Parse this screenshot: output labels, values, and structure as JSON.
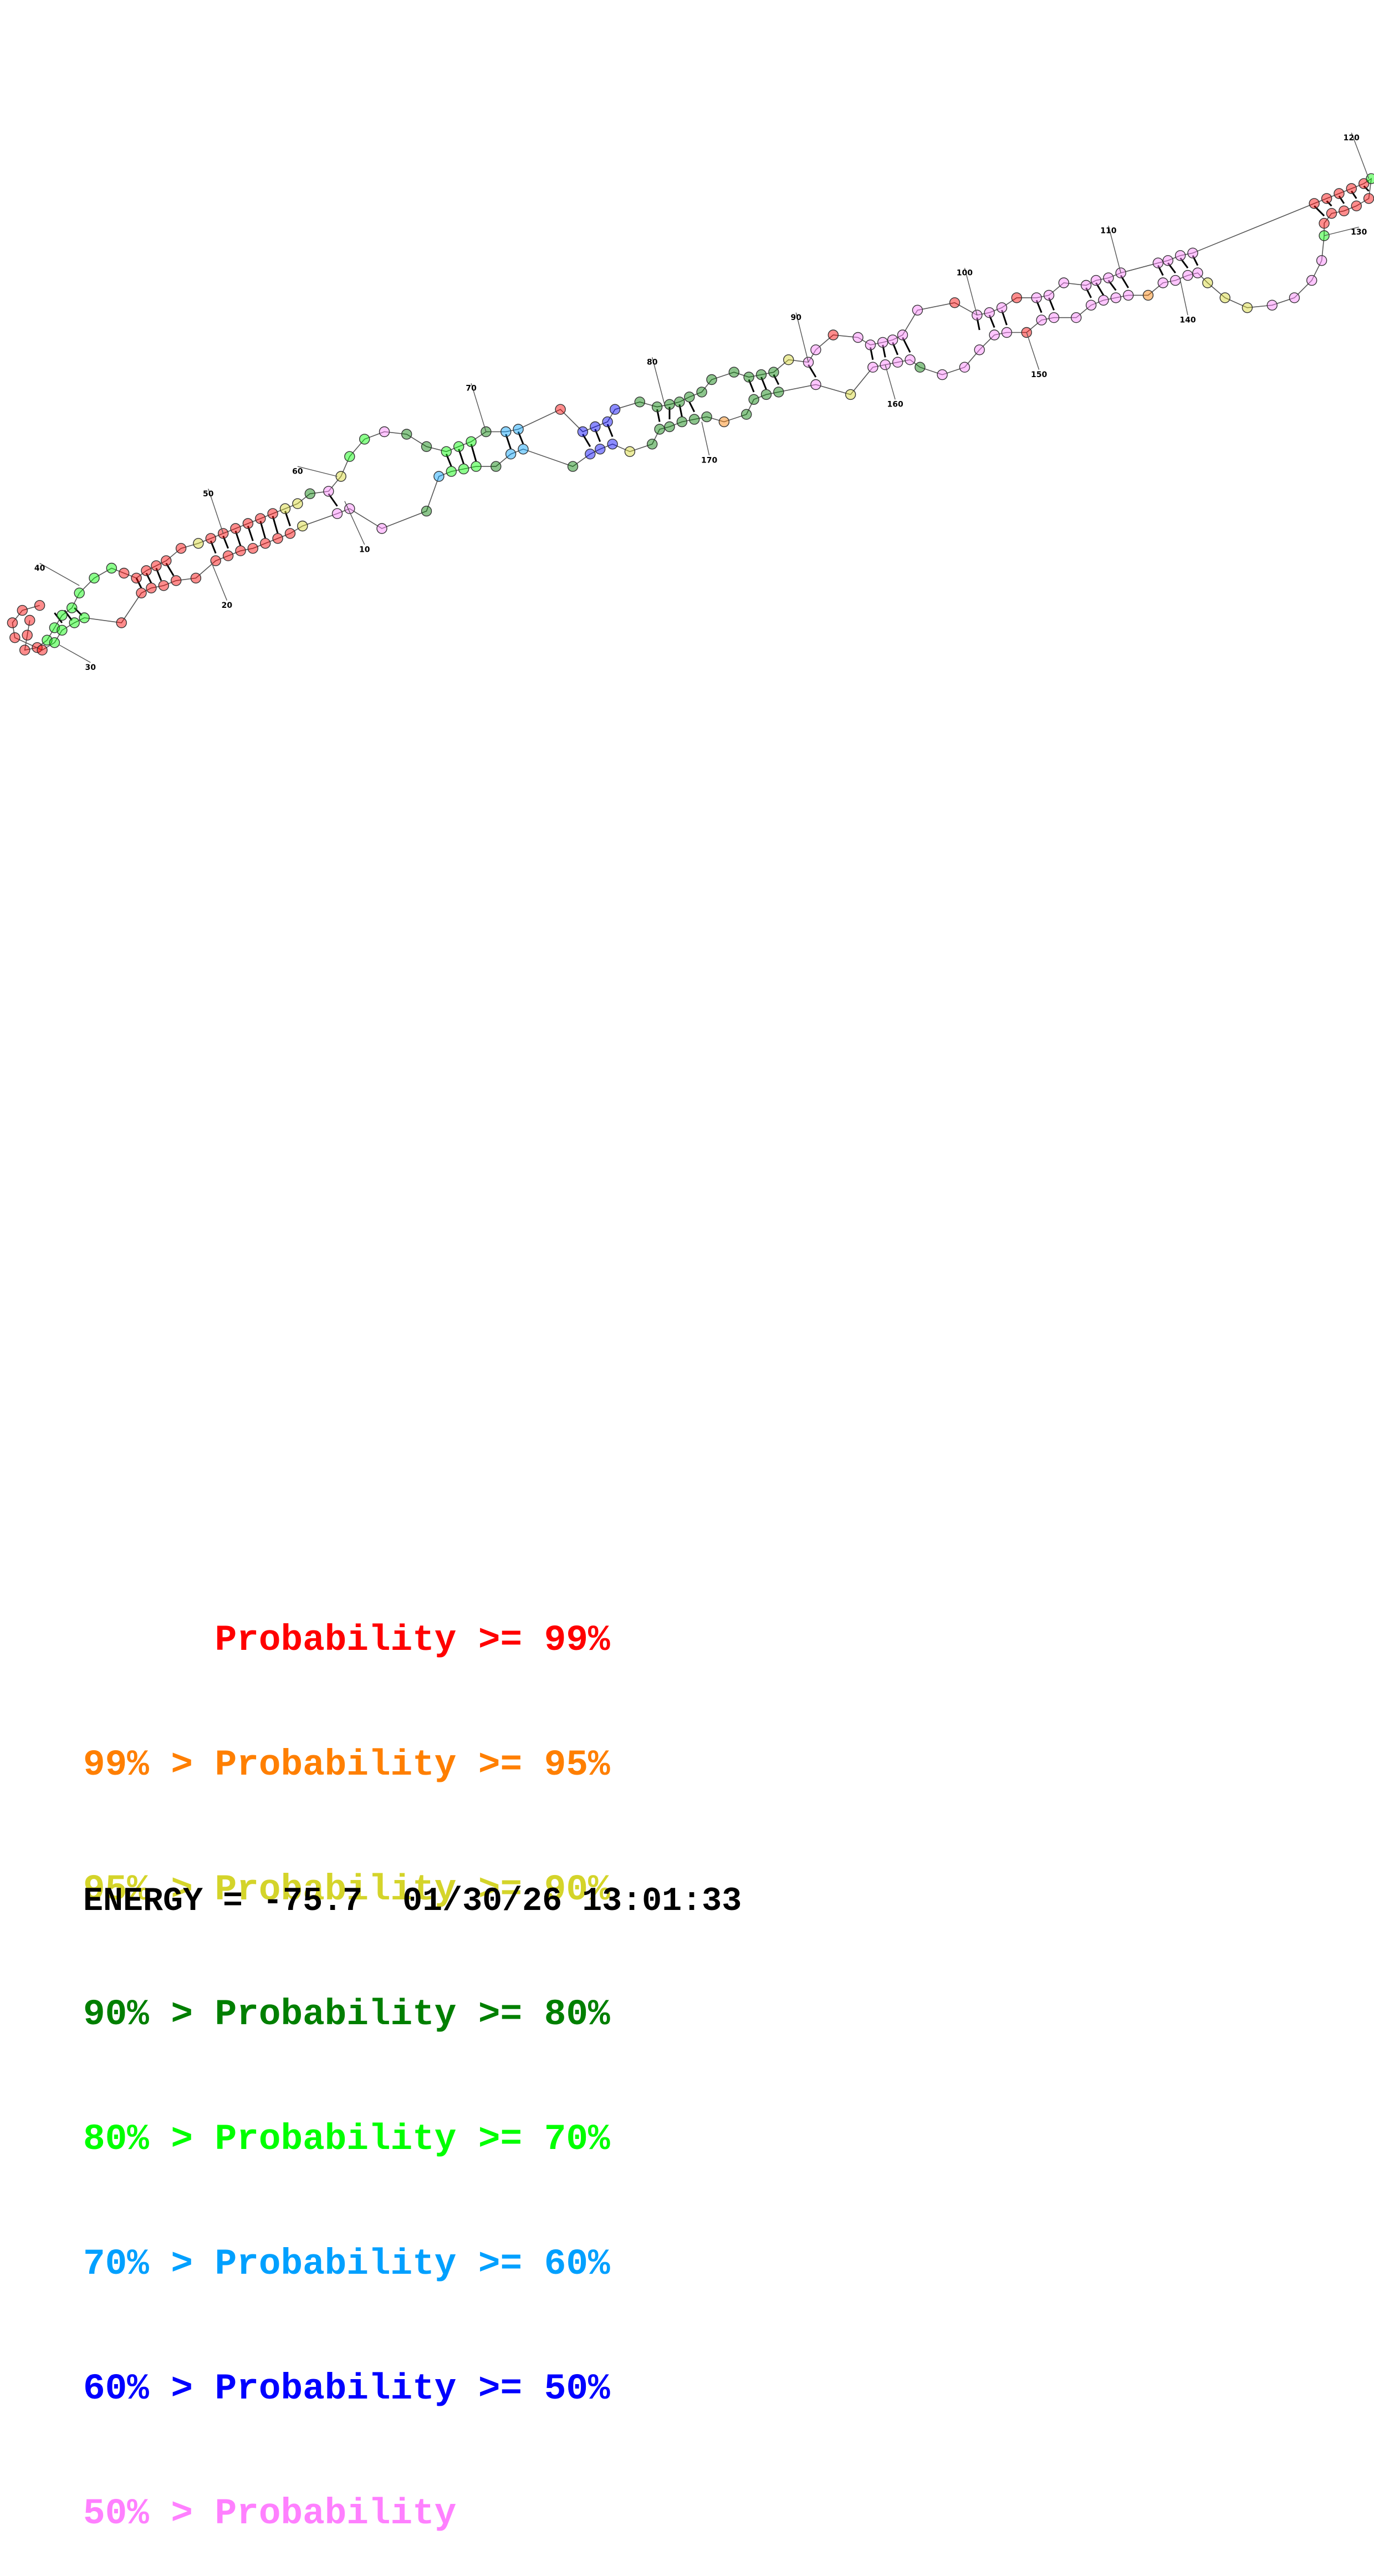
{
  "diagram": {
    "base_colors": {
      "p99": "#ff0000",
      "p95": "#ff7f00",
      "p90": "#d4d42a",
      "p80": "#007f00",
      "p70": "#00ff00",
      "p60": "#00a0ff",
      "p50": "#0000ff",
      "low": "#ff80ff"
    },
    "position_labels": [
      "10",
      "20",
      "30",
      "40",
      "50",
      "60",
      "70",
      "80",
      "90",
      "100",
      "110",
      "120",
      "130",
      "140",
      "150",
      "160",
      "170"
    ]
  },
  "legend": {
    "rows": [
      {
        "text": "      Probability >= 99%",
        "color": "#ff0000"
      },
      {
        "text": "99% > Probability >= 95%",
        "color": "#ff7f00"
      },
      {
        "text": "95% > Probability >= 90%",
        "color": "#d4d42a"
      },
      {
        "text": "90% > Probability >= 80%",
        "color": "#007f00"
      },
      {
        "text": "80% > Probability >= 70%",
        "color": "#00ff00"
      },
      {
        "text": "70% > Probability >= 60%",
        "color": "#00a0ff"
      },
      {
        "text": "60% > Probability >= 50%",
        "color": "#0000ff"
      },
      {
        "text": "50% > Probability",
        "color": "#ff80ff"
      }
    ]
  },
  "footer": {
    "energy_text": "ENERGY = -75.7  01/30/26 13:01:33"
  }
}
